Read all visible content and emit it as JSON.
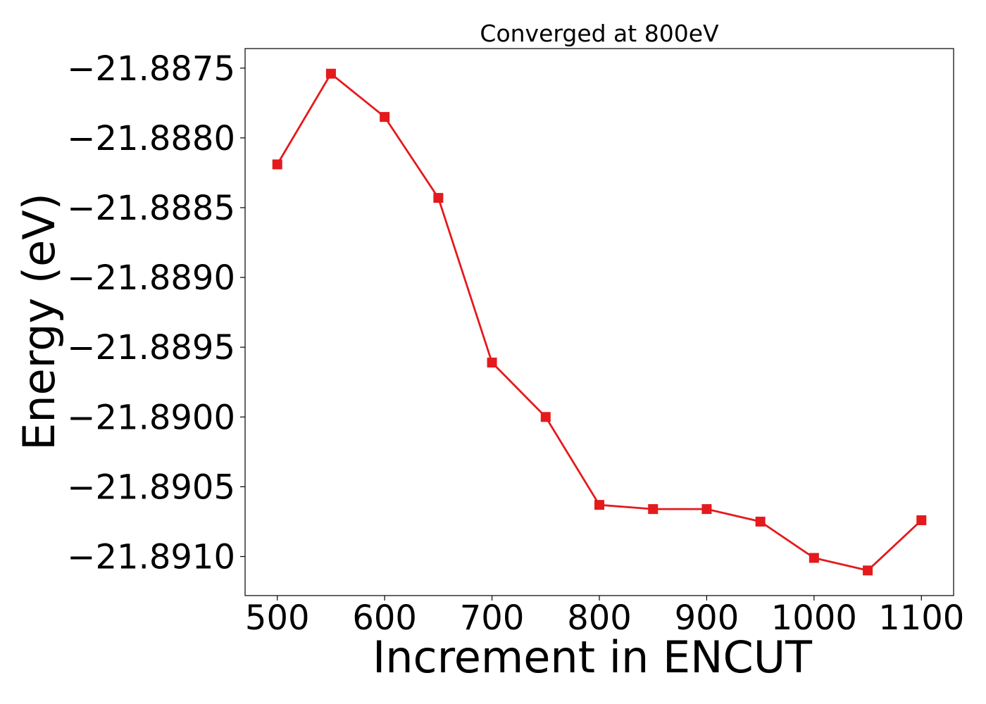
{
  "chart_data": {
    "type": "line",
    "title": "Converged at 800eV",
    "xlabel": "Increment in ENCUT",
    "ylabel": "Energy (eV)",
    "xlim": [
      470,
      1130
    ],
    "ylim": [
      -21.89128,
      -21.88736
    ],
    "x_ticks": [
      500,
      600,
      700,
      800,
      900,
      1000,
      1100
    ],
    "x_tick_labels": [
      "500",
      "600",
      "700",
      "800",
      "900",
      "1000",
      "1100"
    ],
    "y_ticks": [
      -21.8875,
      -21.888,
      -21.8885,
      -21.889,
      -21.8895,
      -21.89,
      -21.8905,
      -21.891
    ],
    "y_tick_labels": [
      "−21.8875",
      "−21.8880",
      "−21.8885",
      "−21.8890",
      "−21.8895",
      "−21.8900",
      "−21.8905",
      "−21.8910"
    ],
    "grid": false,
    "series": [
      {
        "color": "#e41a1c",
        "marker": "square",
        "x": [
          500,
          550,
          600,
          650,
          700,
          750,
          800,
          850,
          900,
          950,
          1000,
          1050,
          1100
        ],
        "y": [
          -21.88819,
          -21.88754,
          -21.88785,
          -21.88843,
          -21.88961,
          -21.89,
          -21.89063,
          -21.89066,
          -21.89066,
          -21.89075,
          -21.89101,
          -21.8911,
          -21.89074
        ]
      }
    ]
  }
}
